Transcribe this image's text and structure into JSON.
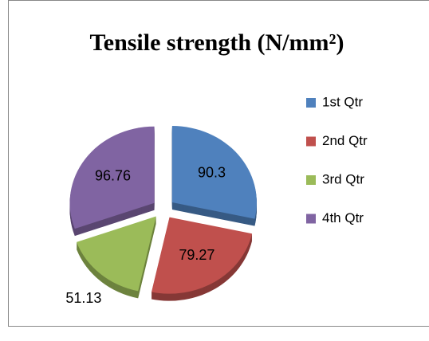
{
  "chart_data": {
    "type": "pie",
    "title": "Tensile strength (N/mm²)",
    "categories": [
      "1st Qtr",
      "2nd Qtr",
      "3rd Qtr",
      "4th Qtr"
    ],
    "values": [
      90.3,
      79.27,
      51.13,
      96.76
    ],
    "colors": [
      "#4f81bd",
      "#c0504d",
      "#9bbb59",
      "#8064a2"
    ],
    "legend": "right"
  }
}
